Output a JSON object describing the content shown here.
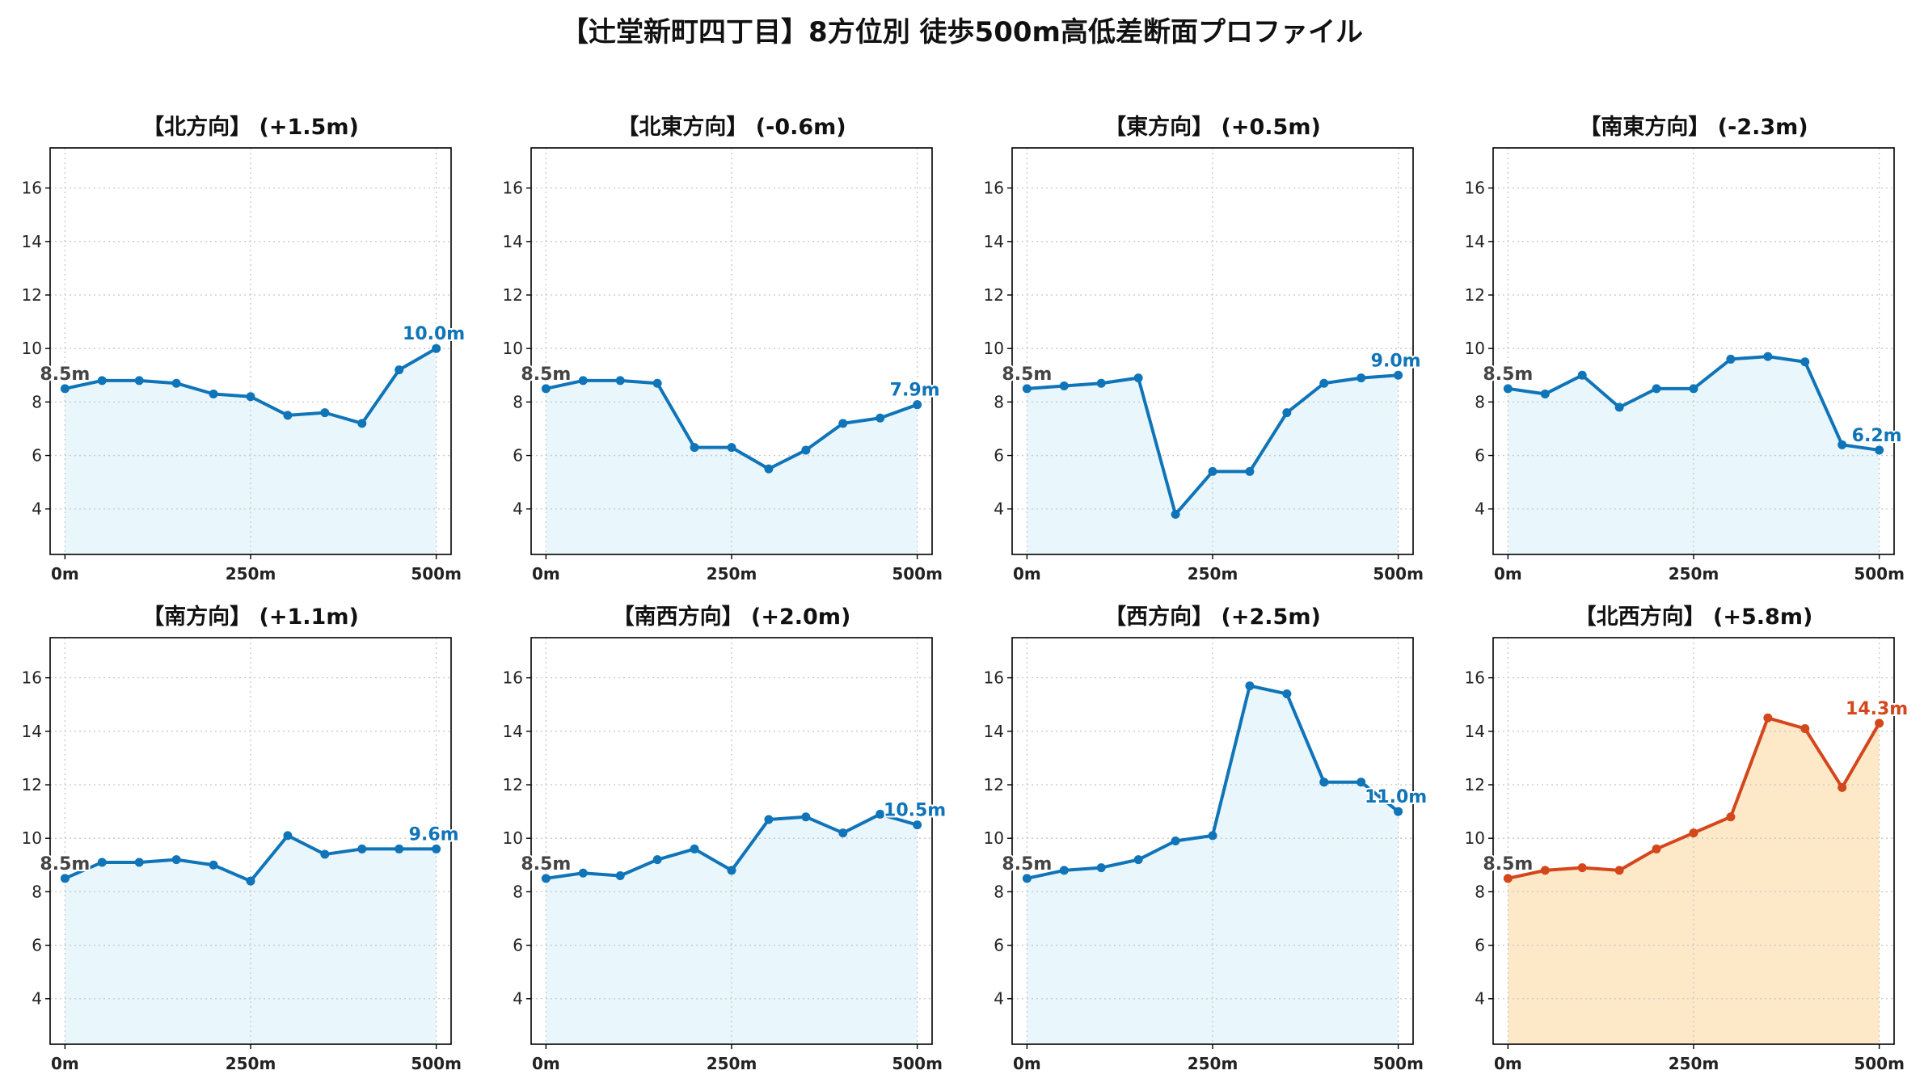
{
  "title": "【辻堂新町四丁目】8方位別 徒歩500m高低差断面プロファイル",
  "colors": {
    "normal_line": "#0f74b8",
    "normal_fill": "#e9f6fb",
    "highlight_line": "#d4461c",
    "highlight_fill": "#fde8c8",
    "start_label": "#444444",
    "grid": "#c8c8c8"
  },
  "chart_data": [
    {
      "type": "line",
      "title": "【北方向】 (+1.5m)",
      "x": [
        0,
        50,
        100,
        150,
        200,
        250,
        300,
        350,
        400,
        450,
        500
      ],
      "y": [
        8.5,
        8.8,
        8.8,
        8.7,
        8.3,
        8.2,
        7.5,
        7.6,
        7.2,
        9.2,
        10.0
      ],
      "start_label": "8.5m",
      "end_label": "10.0m",
      "highlight": false,
      "xticks": [
        "0m",
        "250m",
        "500m"
      ],
      "xtick_values": [
        0,
        250,
        500
      ],
      "yticks": [
        "4",
        "6",
        "8",
        "10",
        "12",
        "14",
        "16"
      ],
      "ytick_values": [
        4,
        6,
        8,
        10,
        12,
        14,
        16
      ],
      "xlim": [
        -20,
        520
      ],
      "ylim": [
        2.3,
        17.5
      ],
      "grid": true
    },
    {
      "type": "line",
      "title": "【北東方向】 (-0.6m)",
      "x": [
        0,
        50,
        100,
        150,
        200,
        250,
        300,
        350,
        400,
        450,
        500
      ],
      "y": [
        8.5,
        8.8,
        8.8,
        8.7,
        6.3,
        6.3,
        5.5,
        6.2,
        7.2,
        7.4,
        7.9
      ],
      "start_label": "8.5m",
      "end_label": "7.9m",
      "highlight": false,
      "xticks": [
        "0m",
        "250m",
        "500m"
      ],
      "xtick_values": [
        0,
        250,
        500
      ],
      "yticks": [
        "4",
        "6",
        "8",
        "10",
        "12",
        "14",
        "16"
      ],
      "ytick_values": [
        4,
        6,
        8,
        10,
        12,
        14,
        16
      ],
      "xlim": [
        -20,
        520
      ],
      "ylim": [
        2.3,
        17.5
      ],
      "grid": true
    },
    {
      "type": "line",
      "title": "【東方向】 (+0.5m)",
      "x": [
        0,
        50,
        100,
        150,
        200,
        250,
        300,
        350,
        400,
        450,
        500
      ],
      "y": [
        8.5,
        8.6,
        8.7,
        8.9,
        3.8,
        5.4,
        5.4,
        7.6,
        8.7,
        8.9,
        9.0
      ],
      "start_label": "8.5m",
      "end_label": "9.0m",
      "highlight": false,
      "xticks": [
        "0m",
        "250m",
        "500m"
      ],
      "xtick_values": [
        0,
        250,
        500
      ],
      "yticks": [
        "4",
        "6",
        "8",
        "10",
        "12",
        "14",
        "16"
      ],
      "ytick_values": [
        4,
        6,
        8,
        10,
        12,
        14,
        16
      ],
      "xlim": [
        -20,
        520
      ],
      "ylim": [
        2.3,
        17.5
      ],
      "grid": true
    },
    {
      "type": "line",
      "title": "【南東方向】 (-2.3m)",
      "x": [
        0,
        50,
        100,
        150,
        200,
        250,
        300,
        350,
        400,
        450,
        500
      ],
      "y": [
        8.5,
        8.3,
        9.0,
        7.8,
        8.5,
        8.5,
        9.6,
        9.7,
        9.5,
        6.4,
        6.2
      ],
      "start_label": "8.5m",
      "end_label": "6.2m",
      "highlight": false,
      "xticks": [
        "0m",
        "250m",
        "500m"
      ],
      "xtick_values": [
        0,
        250,
        500
      ],
      "yticks": [
        "4",
        "6",
        "8",
        "10",
        "12",
        "14",
        "16"
      ],
      "ytick_values": [
        4,
        6,
        8,
        10,
        12,
        14,
        16
      ],
      "xlim": [
        -20,
        520
      ],
      "ylim": [
        2.3,
        17.5
      ],
      "grid": true
    },
    {
      "type": "line",
      "title": "【南方向】 (+1.1m)",
      "x": [
        0,
        50,
        100,
        150,
        200,
        250,
        300,
        350,
        400,
        450,
        500
      ],
      "y": [
        8.5,
        9.1,
        9.1,
        9.2,
        9.0,
        8.4,
        10.1,
        9.4,
        9.6,
        9.6,
        9.6
      ],
      "start_label": "8.5m",
      "end_label": "9.6m",
      "highlight": false,
      "xticks": [
        "0m",
        "250m",
        "500m"
      ],
      "xtick_values": [
        0,
        250,
        500
      ],
      "yticks": [
        "4",
        "6",
        "8",
        "10",
        "12",
        "14",
        "16"
      ],
      "ytick_values": [
        4,
        6,
        8,
        10,
        12,
        14,
        16
      ],
      "xlim": [
        -20,
        520
      ],
      "ylim": [
        2.3,
        17.5
      ],
      "grid": true
    },
    {
      "type": "line",
      "title": "【南西方向】 (+2.0m)",
      "x": [
        0,
        50,
        100,
        150,
        200,
        250,
        300,
        350,
        400,
        450,
        500
      ],
      "y": [
        8.5,
        8.7,
        8.6,
        9.2,
        9.6,
        8.8,
        10.7,
        10.8,
        10.2,
        10.9,
        10.5
      ],
      "start_label": "8.5m",
      "end_label": "10.5m",
      "highlight": false,
      "xticks": [
        "0m",
        "250m",
        "500m"
      ],
      "xtick_values": [
        0,
        250,
        500
      ],
      "yticks": [
        "4",
        "6",
        "8",
        "10",
        "12",
        "14",
        "16"
      ],
      "ytick_values": [
        4,
        6,
        8,
        10,
        12,
        14,
        16
      ],
      "xlim": [
        -20,
        520
      ],
      "ylim": [
        2.3,
        17.5
      ],
      "grid": true
    },
    {
      "type": "line",
      "title": "【西方向】 (+2.5m)",
      "x": [
        0,
        50,
        100,
        150,
        200,
        250,
        300,
        350,
        400,
        450,
        500
      ],
      "y": [
        8.5,
        8.8,
        8.9,
        9.2,
        9.9,
        10.1,
        15.7,
        15.4,
        12.1,
        12.1,
        11.0
      ],
      "start_label": "8.5m",
      "end_label": "11.0m",
      "highlight": false,
      "xticks": [
        "0m",
        "250m",
        "500m"
      ],
      "xtick_values": [
        0,
        250,
        500
      ],
      "yticks": [
        "4",
        "6",
        "8",
        "10",
        "12",
        "14",
        "16"
      ],
      "ytick_values": [
        4,
        6,
        8,
        10,
        12,
        14,
        16
      ],
      "xlim": [
        -20,
        520
      ],
      "ylim": [
        2.3,
        17.5
      ],
      "grid": true
    },
    {
      "type": "line",
      "title": "【北西方向】 (+5.8m)",
      "x": [
        0,
        50,
        100,
        150,
        200,
        250,
        300,
        350,
        400,
        450,
        500
      ],
      "y": [
        8.5,
        8.8,
        8.9,
        8.8,
        9.6,
        10.2,
        10.8,
        14.5,
        14.1,
        11.9,
        14.3
      ],
      "start_label": "8.5m",
      "end_label": "14.3m",
      "highlight": true,
      "xticks": [
        "0m",
        "250m",
        "500m"
      ],
      "xtick_values": [
        0,
        250,
        500
      ],
      "yticks": [
        "4",
        "6",
        "8",
        "10",
        "12",
        "14",
        "16"
      ],
      "ytick_values": [
        4,
        6,
        8,
        10,
        12,
        14,
        16
      ],
      "xlim": [
        -20,
        520
      ],
      "ylim": [
        2.3,
        17.5
      ],
      "grid": true
    }
  ]
}
